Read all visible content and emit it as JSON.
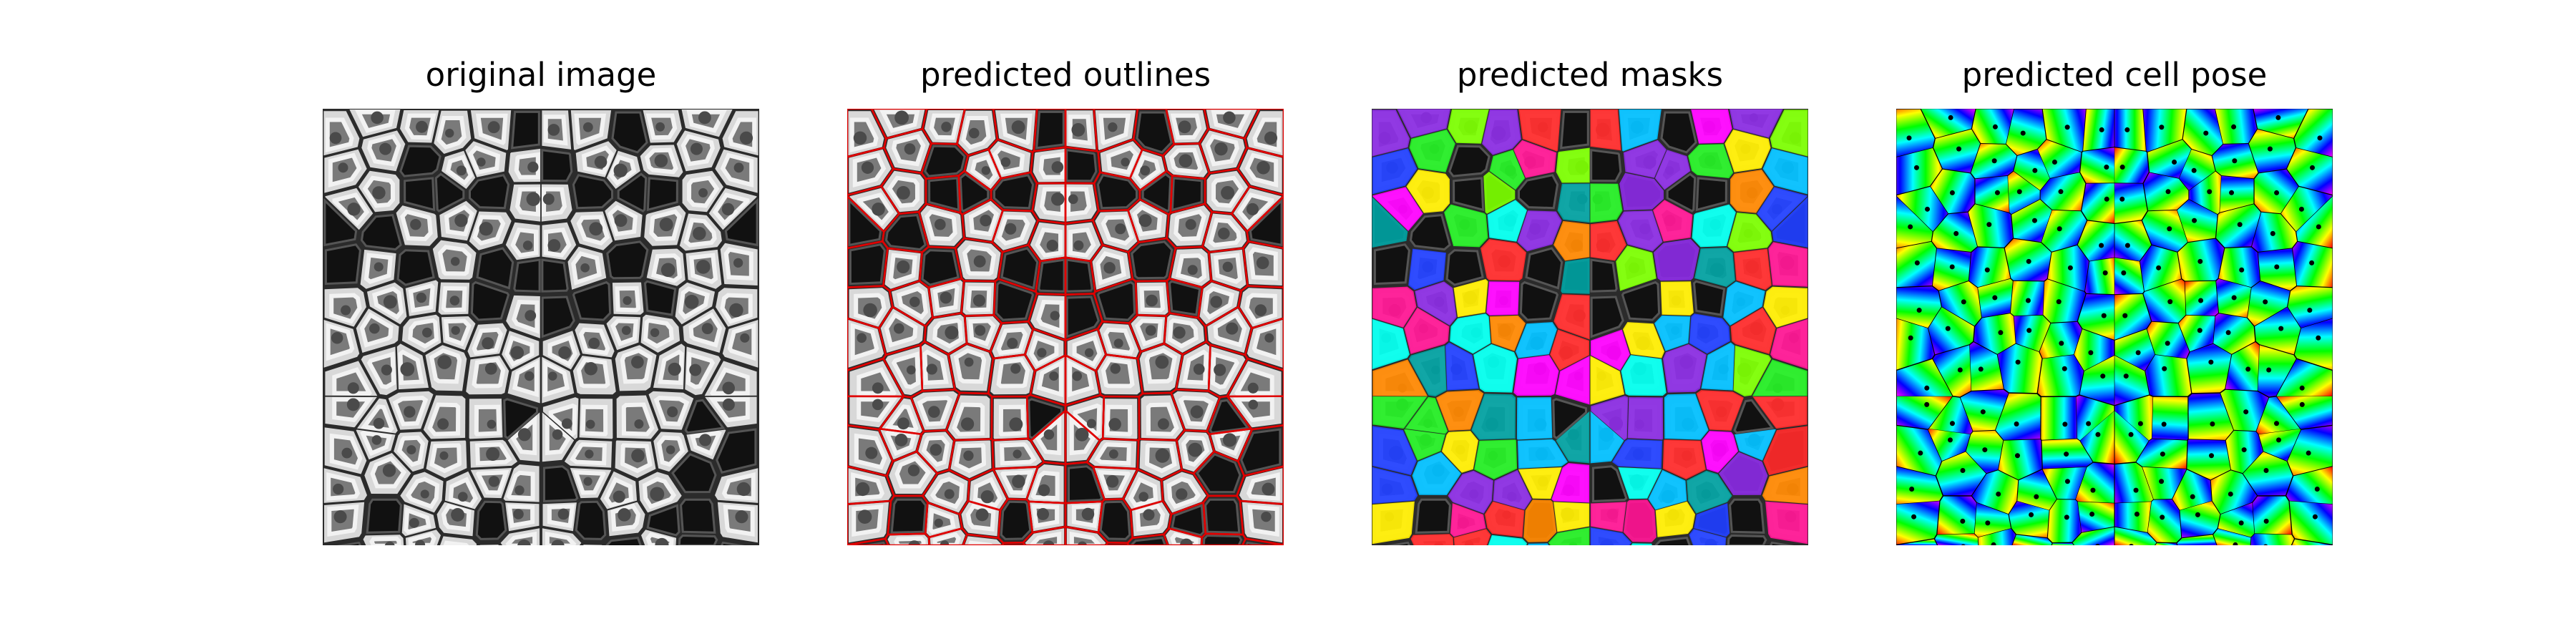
{
  "figure": {
    "panels": [
      {
        "title": "original image"
      },
      {
        "title": "predicted outlines"
      },
      {
        "title": "predicted masks"
      },
      {
        "title": "predicted cell pose"
      }
    ],
    "colors": {
      "outline": "#e00000",
      "mask_palette": [
        "#ff2a2a",
        "#00c0ff",
        "#22ee22",
        "#ff00ff",
        "#ffee00",
        "#00ffee",
        "#2040ff",
        "#ff8800",
        "#8a2be2",
        "#ff1493",
        "#7cff00",
        "#00a0a0"
      ],
      "flow_palette": [
        "#ff0000",
        "#ffff00",
        "#00ff00",
        "#00ffff",
        "#0000ff",
        "#ff00ff"
      ]
    }
  }
}
